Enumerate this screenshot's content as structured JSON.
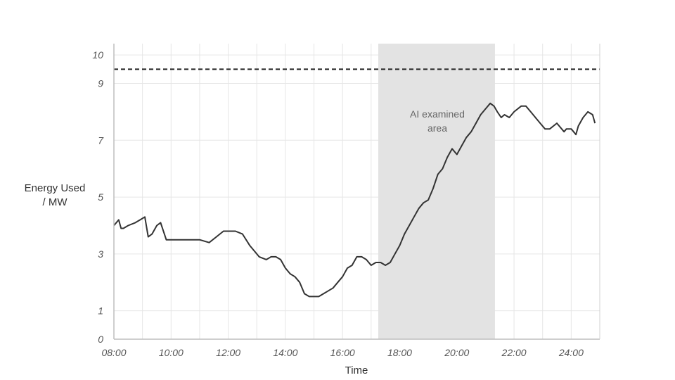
{
  "chart_data": {
    "type": "line",
    "title": "",
    "xlabel": "Time",
    "ylabel": [
      "Energy Used",
      "/ MW"
    ],
    "x_ticks": [
      "08:00",
      "10:00",
      "12:00",
      "14:00",
      "16:00",
      "18:00",
      "20:00",
      "22:00",
      "24:00"
    ],
    "y_ticks": [
      0,
      1,
      3,
      5,
      7,
      9,
      10
    ],
    "xlim": [
      "08:00",
      "25:00"
    ],
    "ylim": [
      0,
      10.4
    ],
    "grid": true,
    "threshold_line": {
      "value": 9.5,
      "style": "dashed"
    },
    "highlight": {
      "x_start": "17:15",
      "x_end": "21:20",
      "label": [
        "AI examined",
        "area"
      ]
    },
    "series": [
      {
        "x": [
          "08:00",
          "08:10",
          "08:15",
          "08:20",
          "08:30",
          "08:45",
          "08:55",
          "09:05",
          "09:12",
          "09:20",
          "09:30",
          "09:38",
          "09:50",
          "10:00",
          "10:10",
          "10:30",
          "11:00",
          "11:20",
          "11:35",
          "11:50",
          "12:00",
          "12:15",
          "12:30",
          "12:45",
          "12:55",
          "13:05",
          "13:20",
          "13:30",
          "13:40",
          "13:50",
          "14:00",
          "14:10",
          "14:20",
          "14:30",
          "14:40",
          "14:50",
          "15:00",
          "15:10",
          "15:20",
          "15:30",
          "15:40",
          "15:50",
          "16:00",
          "16:10",
          "16:20",
          "16:30",
          "16:40",
          "16:50",
          "17:00",
          "17:10",
          "17:20",
          "17:30",
          "17:40",
          "17:50",
          "18:00",
          "18:10",
          "18:20",
          "18:30",
          "18:40",
          "18:50",
          "19:00",
          "19:10",
          "19:20",
          "19:30",
          "19:40",
          "19:50",
          "20:00",
          "20:10",
          "20:20",
          "20:30",
          "20:40",
          "20:50",
          "21:00",
          "21:10",
          "21:18",
          "21:25",
          "21:33",
          "21:40",
          "21:50",
          "22:00",
          "22:15",
          "22:25",
          "22:35",
          "22:45",
          "22:55",
          "23:05",
          "23:15",
          "23:30",
          "23:45",
          "23:50",
          "24:00",
          "24:10",
          "24:15",
          "24:25",
          "24:35",
          "24:45",
          "24:50"
        ],
        "values": [
          4.0,
          4.2,
          3.9,
          3.9,
          4.0,
          4.1,
          4.2,
          4.3,
          3.6,
          3.7,
          4.0,
          4.1,
          3.5,
          3.5,
          3.5,
          3.5,
          3.5,
          3.4,
          3.6,
          3.8,
          3.8,
          3.8,
          3.7,
          3.3,
          3.1,
          2.9,
          2.8,
          2.9,
          2.9,
          2.8,
          2.5,
          2.3,
          2.2,
          2.0,
          1.6,
          1.5,
          1.5,
          1.5,
          1.6,
          1.7,
          1.8,
          2.0,
          2.2,
          2.5,
          2.6,
          2.9,
          2.9,
          2.8,
          2.6,
          2.7,
          2.7,
          2.6,
          2.7,
          3.0,
          3.3,
          3.7,
          4.0,
          4.3,
          4.6,
          4.8,
          4.9,
          5.3,
          5.8,
          6.0,
          6.4,
          6.7,
          6.5,
          6.8,
          7.1,
          7.3,
          7.6,
          7.9,
          8.1,
          8.3,
          8.2,
          8.0,
          7.8,
          7.9,
          7.8,
          8.0,
          8.2,
          8.2,
          8.0,
          7.8,
          7.6,
          7.4,
          7.4,
          7.6,
          7.3,
          7.4,
          7.4,
          7.2,
          7.5,
          7.8,
          8.0,
          7.9,
          7.6
        ]
      }
    ]
  }
}
